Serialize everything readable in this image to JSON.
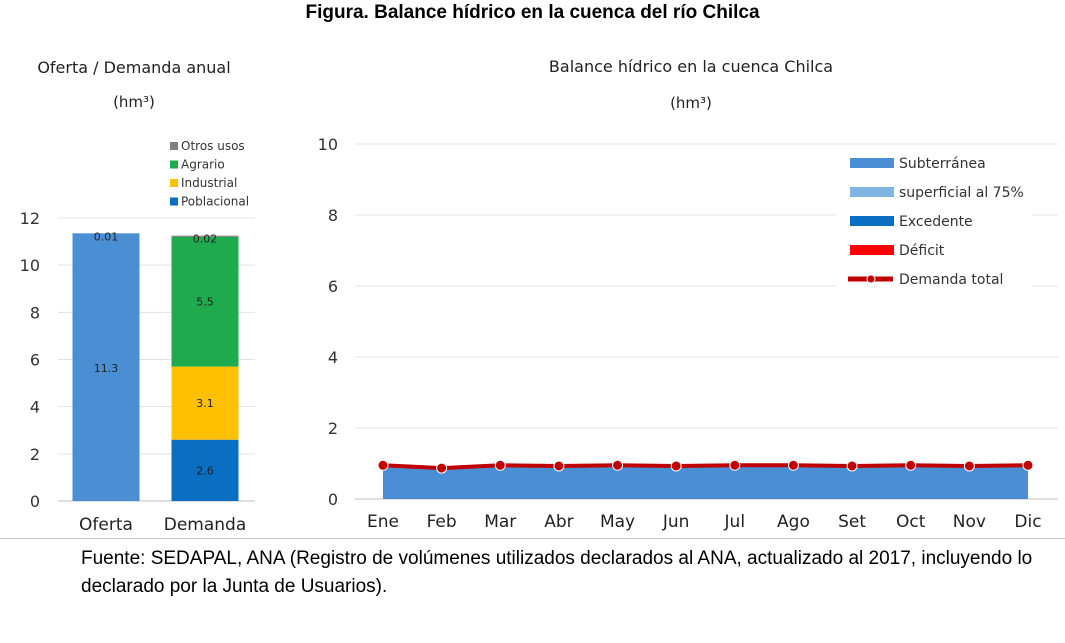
{
  "figure_title": "Figura. Balance hídrico en la cuenca del río Chilca",
  "source_note": "Fuente: SEDAPAL, ANA (Registro de volúmenes utilizados declarados al ANA, actualizado al 2017, incluyendo lo declarado por la Junta de Usuarios).",
  "chart_data": [
    {
      "type": "bar",
      "stacked": true,
      "title": "Oferta / Demanda anual",
      "subtitle": "(hm³)",
      "categories": [
        "Oferta",
        "Demanda"
      ],
      "series": [
        {
          "name": "Poblacional",
          "values": [
            null,
            2.6
          ],
          "labels": [
            "",
            "2.6"
          ],
          "color": "#0a6fc2"
        },
        {
          "name": "Industrial",
          "values": [
            null,
            3.1
          ],
          "labels": [
            "",
            "3.1"
          ],
          "color": "#ffc000"
        },
        {
          "name": "Agrario",
          "values": [
            null,
            5.5
          ],
          "labels": [
            "",
            "5.5"
          ],
          "color": "#1faa4d"
        },
        {
          "name": "Otros usos",
          "values": [
            null,
            0.02
          ],
          "labels": [
            "",
            "0.02"
          ],
          "color": "#7f7f7f"
        },
        {
          "values": [
            11.3,
            null
          ],
          "labels": [
            "11.3",
            ""
          ],
          "color": "#4a8fd4"
        },
        {
          "values": [
            0.01,
            null
          ],
          "labels": [
            "0.01",
            ""
          ],
          "color": "#4a8fd4"
        }
      ],
      "legend_order": [
        "Otros usos",
        "Agrario",
        "Industrial",
        "Poblacional"
      ],
      "ylim": [
        0,
        12
      ],
      "yticks": [
        "0",
        "2",
        "4",
        "6",
        "8",
        "10",
        "12"
      ],
      "grid": true,
      "legend_position": "top-right"
    },
    {
      "type": "area",
      "title": "Balance hídrico en la cuenca Chilca",
      "subtitle": "(hm³)",
      "categories": [
        "Ene",
        "Feb",
        "Mar",
        "Abr",
        "May",
        "Jun",
        "Jul",
        "Ago",
        "Set",
        "Oct",
        "Nov",
        "Dic"
      ],
      "series": [
        {
          "name": "Subterránea",
          "kind": "area",
          "color": "#4a8fd4",
          "values": [
            0.95,
            0.87,
            0.95,
            0.93,
            0.95,
            0.93,
            0.95,
            0.95,
            0.93,
            0.95,
            0.93,
            0.95
          ]
        },
        {
          "name": "superficial al 75%",
          "kind": "area",
          "color": "#7fb5e3",
          "values": [
            0,
            0,
            0,
            0,
            0,
            0,
            0,
            0,
            0,
            0,
            0,
            0
          ]
        },
        {
          "name": "Excedente",
          "kind": "area",
          "color": "#0a6fc2",
          "values": [
            0,
            0,
            0,
            0,
            0,
            0,
            0,
            0,
            0,
            0,
            0,
            0
          ]
        },
        {
          "name": "Déficit",
          "kind": "area",
          "color": "#ff0000",
          "values": [
            0,
            0,
            0,
            0,
            0,
            0,
            0,
            0,
            0,
            0,
            0,
            0
          ]
        },
        {
          "name": "Demanda total",
          "kind": "line",
          "color": "#c00000",
          "values": [
            0.95,
            0.87,
            0.95,
            0.93,
            0.95,
            0.93,
            0.95,
            0.95,
            0.93,
            0.95,
            0.93,
            0.95
          ]
        }
      ],
      "ylim": [
        0,
        10
      ],
      "yticks": [
        "0",
        "2",
        "4",
        "6",
        "8",
        "10"
      ],
      "grid": true,
      "legend_position": "top-right"
    }
  ]
}
